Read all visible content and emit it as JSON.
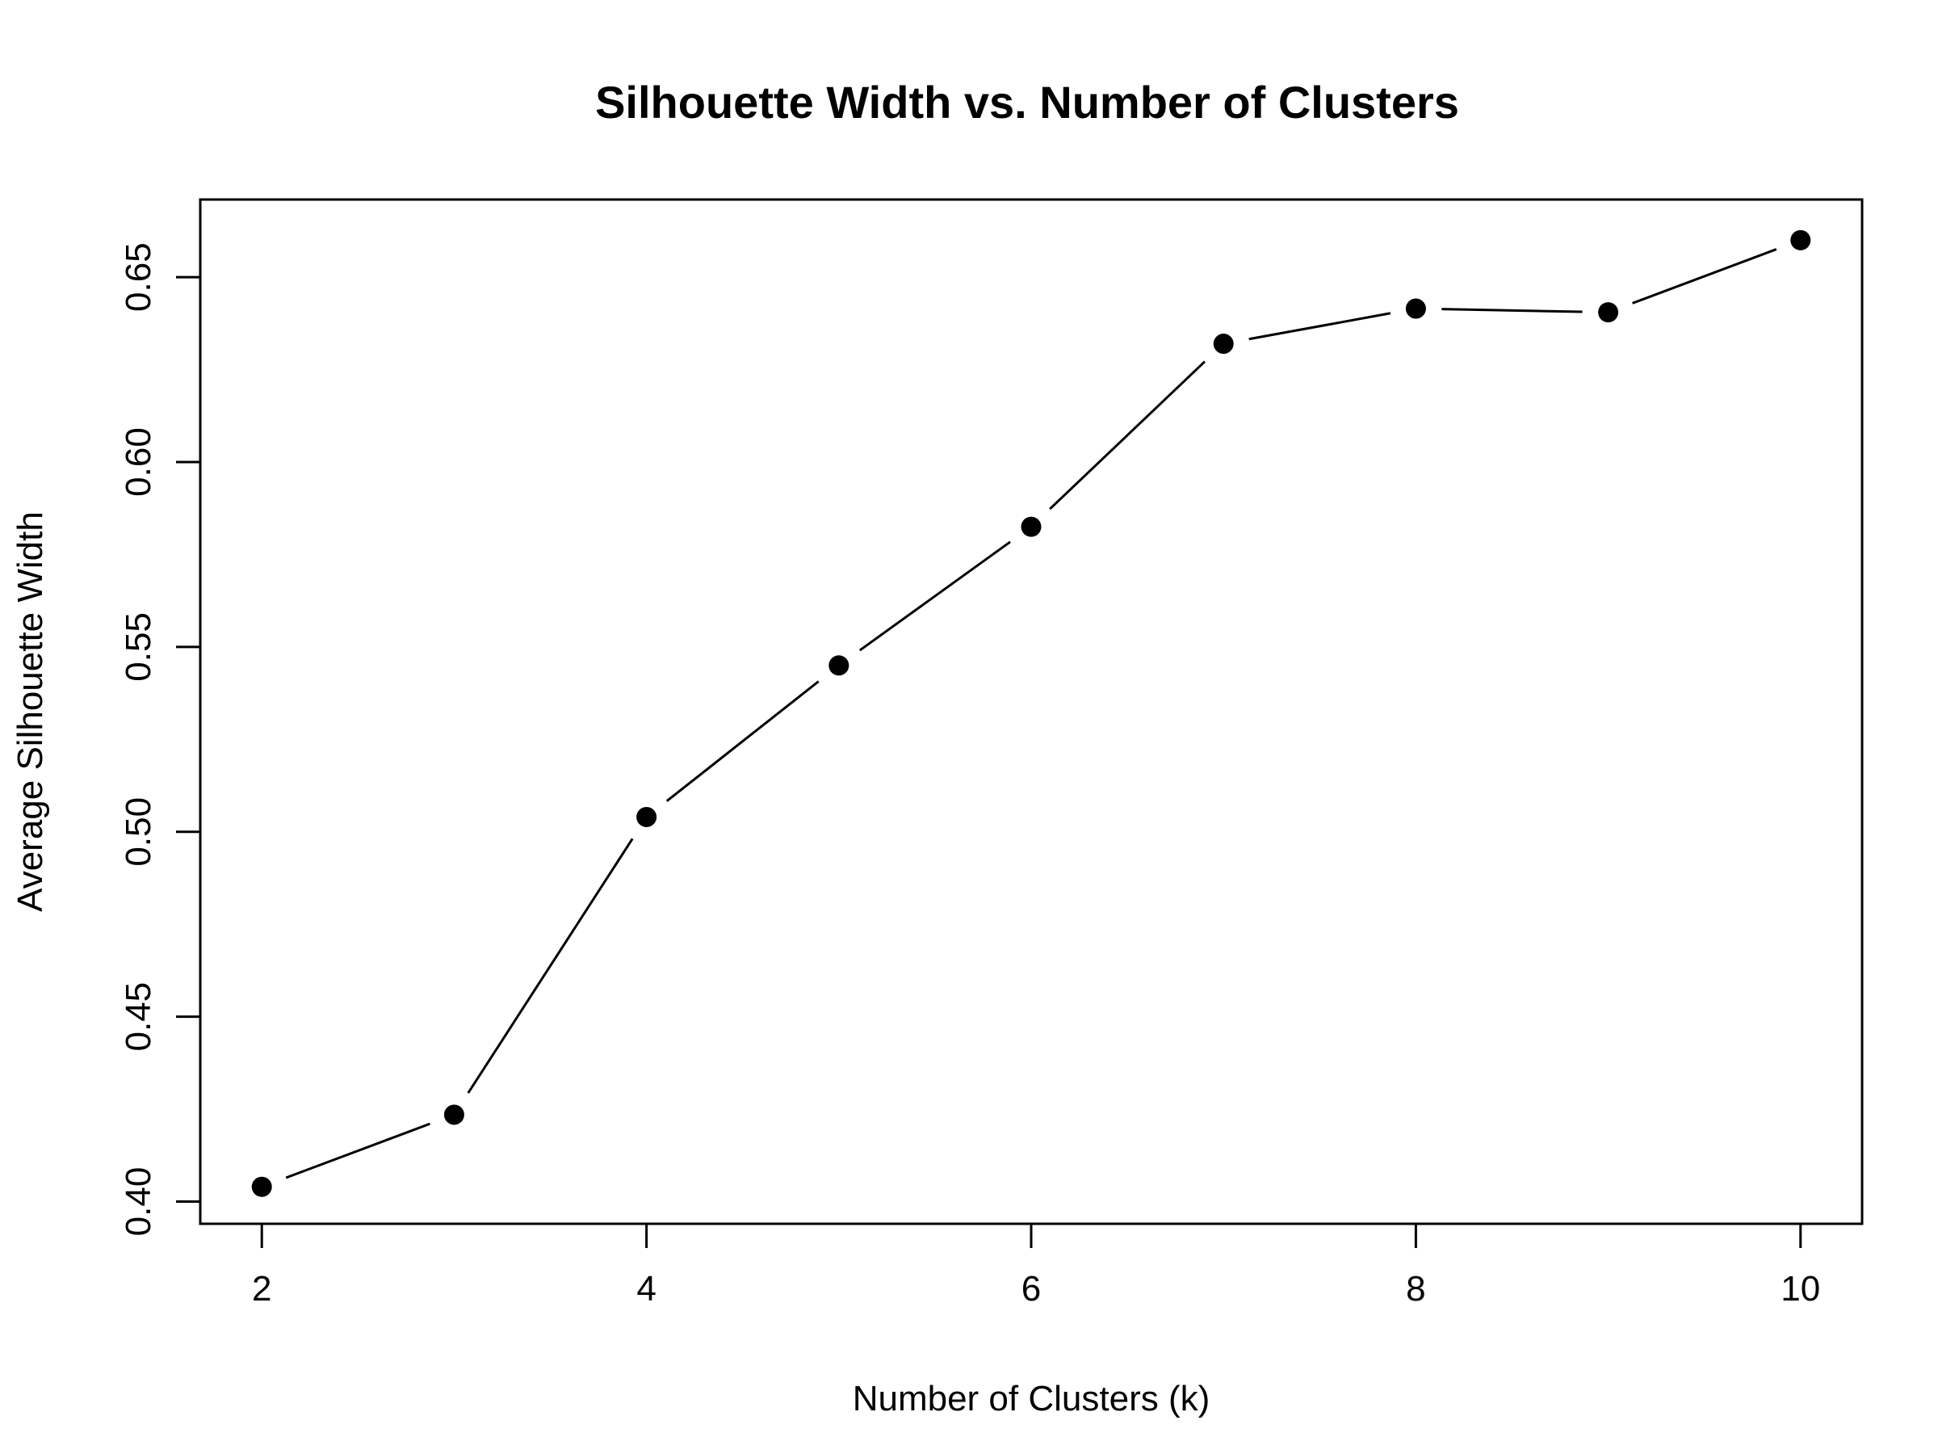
{
  "chart_data": {
    "type": "line",
    "title": "Silhouette Width vs. Number of Clusters",
    "xlabel": "Number of Clusters (k)",
    "ylabel": "Average Silhouette Width",
    "x": [
      2,
      3,
      4,
      5,
      6,
      7,
      8,
      9,
      10
    ],
    "series": [
      {
        "values": [
          0.404,
          0.4235,
          0.504,
          0.545,
          0.5825,
          0.632,
          0.6415,
          0.6405,
          0.66
        ]
      }
    ],
    "xticks": [
      2,
      4,
      6,
      8,
      10
    ],
    "xtick_labels": [
      "2",
      "4",
      "6",
      "8",
      "10"
    ],
    "yticks": [
      0.4,
      0.45,
      0.5,
      0.55,
      0.6,
      0.65
    ],
    "ytick_labels": [
      "0.40",
      "0.45",
      "0.50",
      "0.55",
      "0.60",
      "0.65"
    ],
    "xlim": [
      1.68,
      10.32
    ],
    "ylim": [
      0.394,
      0.671
    ],
    "grid": false,
    "marker": "filled-circle",
    "line_color": "#000000",
    "marker_color": "#000000",
    "background": "#ffffff"
  }
}
